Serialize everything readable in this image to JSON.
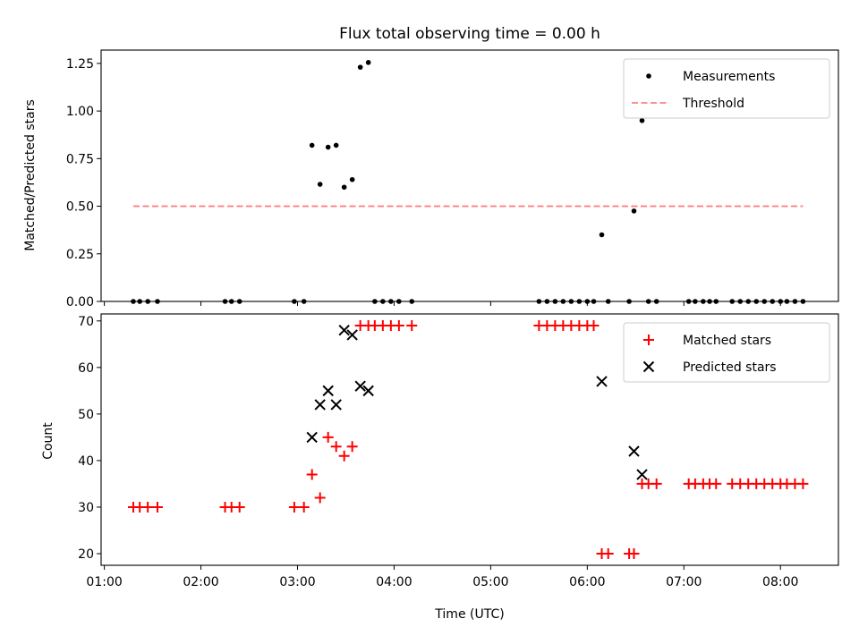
{
  "chart_data": [
    {
      "type": "scatter",
      "title": "Flux total observing time = 0.00 h",
      "xlabel": "",
      "ylabel": "Matched/Predicted stars",
      "xlim": [
        "00:58",
        "08:36"
      ],
      "ylim": [
        0,
        1.32
      ],
      "yticks": [
        0,
        0.25,
        0.5,
        0.75,
        1.0,
        1.25
      ],
      "ytick_labels": [
        "0.00",
        "0.25",
        "0.50",
        "0.75",
        "1.00",
        "1.25"
      ],
      "legend_position": "top-right",
      "legend": [
        "Measurements",
        "Threshold"
      ],
      "series": [
        {
          "name": "Measurements",
          "marker": "dot",
          "color": "#000000",
          "points": [
            [
              "01:18",
              0
            ],
            [
              "01:22",
              0
            ],
            [
              "01:27",
              0
            ],
            [
              "01:33",
              0
            ],
            [
              "02:15",
              0
            ],
            [
              "02:19",
              0
            ],
            [
              "02:24",
              0
            ],
            [
              "02:58",
              0
            ],
            [
              "03:04",
              0
            ],
            [
              "03:09",
              0.82
            ],
            [
              "03:14",
              0.615
            ],
            [
              "03:19",
              0.81
            ],
            [
              "03:24",
              0.82
            ],
            [
              "03:29",
              0.6
            ],
            [
              "03:34",
              0.64
            ],
            [
              "03:39",
              1.23
            ],
            [
              "03:44",
              1.255
            ],
            [
              "03:48",
              0
            ],
            [
              "03:53",
              0
            ],
            [
              "03:58",
              0
            ],
            [
              "04:03",
              0
            ],
            [
              "04:11",
              0
            ],
            [
              "05:30",
              0
            ],
            [
              "05:35",
              0
            ],
            [
              "05:40",
              0
            ],
            [
              "05:45",
              0
            ],
            [
              "05:50",
              0
            ],
            [
              "05:55",
              0
            ],
            [
              "06:00",
              0
            ],
            [
              "06:04",
              0
            ],
            [
              "06:09",
              0.35
            ],
            [
              "06:13",
              0
            ],
            [
              "06:26",
              0
            ],
            [
              "06:29",
              0.475
            ],
            [
              "06:34",
              0.95
            ],
            [
              "06:38",
              0
            ],
            [
              "06:43",
              0
            ],
            [
              "07:03",
              0
            ],
            [
              "07:07",
              0
            ],
            [
              "07:12",
              0
            ],
            [
              "07:16",
              0
            ],
            [
              "07:20",
              0
            ],
            [
              "07:30",
              0
            ],
            [
              "07:35",
              0
            ],
            [
              "07:40",
              0
            ],
            [
              "07:45",
              0
            ],
            [
              "07:50",
              0
            ],
            [
              "07:55",
              0
            ],
            [
              "08:00",
              0
            ],
            [
              "08:04",
              0
            ],
            [
              "08:09",
              0
            ],
            [
              "08:14",
              0
            ]
          ]
        },
        {
          "name": "Threshold",
          "style": "dashed-line",
          "color": "#ff7f7f",
          "points": [
            [
              "01:18",
              0.5
            ],
            [
              "08:14",
              0.5
            ]
          ]
        }
      ]
    },
    {
      "type": "scatter",
      "title": "",
      "xlabel": "Time (UTC)",
      "ylabel": "Count",
      "xlim": [
        "00:58",
        "08:36"
      ],
      "ylim": [
        17.5,
        71.5
      ],
      "yticks": [
        20,
        30,
        40,
        50,
        60,
        70
      ],
      "ytick_labels": [
        "20",
        "30",
        "40",
        "50",
        "60",
        "70"
      ],
      "xticks": [
        "01:00",
        "02:00",
        "03:00",
        "04:00",
        "05:00",
        "06:00",
        "07:00",
        "08:00"
      ],
      "legend_position": "top-right",
      "legend": [
        "Matched stars",
        "Predicted stars"
      ],
      "series": [
        {
          "name": "Matched stars",
          "marker": "plus",
          "color": "#ff0000",
          "points": [
            [
              "01:18",
              30
            ],
            [
              "01:22",
              30
            ],
            [
              "01:27",
              30
            ],
            [
              "01:33",
              30
            ],
            [
              "02:15",
              30
            ],
            [
              "02:19",
              30
            ],
            [
              "02:24",
              30
            ],
            [
              "02:58",
              30
            ],
            [
              "03:04",
              30
            ],
            [
              "03:09",
              37
            ],
            [
              "03:14",
              32
            ],
            [
              "03:19",
              45
            ],
            [
              "03:24",
              43
            ],
            [
              "03:29",
              41
            ],
            [
              "03:34",
              43
            ],
            [
              "03:39",
              69
            ],
            [
              "03:44",
              69
            ],
            [
              "03:48",
              69
            ],
            [
              "03:53",
              69
            ],
            [
              "03:58",
              69
            ],
            [
              "04:03",
              69
            ],
            [
              "04:11",
              69
            ],
            [
              "05:30",
              69
            ],
            [
              "05:35",
              69
            ],
            [
              "05:40",
              69
            ],
            [
              "05:45",
              69
            ],
            [
              "05:50",
              69
            ],
            [
              "05:55",
              69
            ],
            [
              "06:00",
              69
            ],
            [
              "06:04",
              69
            ],
            [
              "06:09",
              20
            ],
            [
              "06:13",
              20
            ],
            [
              "06:26",
              20
            ],
            [
              "06:29",
              20
            ],
            [
              "06:34",
              35
            ],
            [
              "06:38",
              35
            ],
            [
              "06:43",
              35
            ],
            [
              "07:03",
              35
            ],
            [
              "07:07",
              35
            ],
            [
              "07:12",
              35
            ],
            [
              "07:16",
              35
            ],
            [
              "07:20",
              35
            ],
            [
              "07:30",
              35
            ],
            [
              "07:35",
              35
            ],
            [
              "07:40",
              35
            ],
            [
              "07:45",
              35
            ],
            [
              "07:50",
              35
            ],
            [
              "07:55",
              35
            ],
            [
              "08:00",
              35
            ],
            [
              "08:04",
              35
            ],
            [
              "08:09",
              35
            ],
            [
              "08:14",
              35
            ]
          ]
        },
        {
          "name": "Predicted stars",
          "marker": "x",
          "color": "#000000",
          "points": [
            [
              "03:09",
              45
            ],
            [
              "03:14",
              52
            ],
            [
              "03:19",
              55
            ],
            [
              "03:24",
              52
            ],
            [
              "03:29",
              68
            ],
            [
              "03:34",
              67
            ],
            [
              "03:39",
              56
            ],
            [
              "03:44",
              55
            ],
            [
              "06:09",
              57
            ],
            [
              "06:29",
              42
            ],
            [
              "06:34",
              37
            ]
          ]
        }
      ]
    }
  ]
}
